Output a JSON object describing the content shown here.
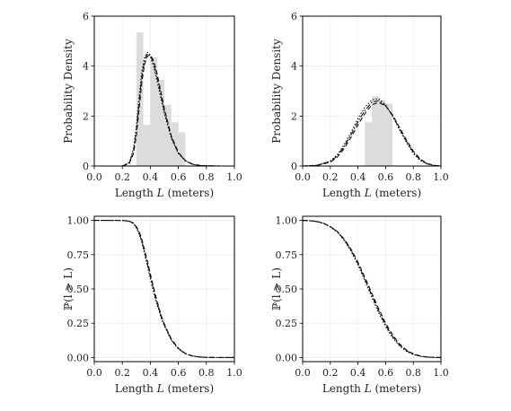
{
  "chart_data": [
    {
      "type": "histogram+line",
      "xlabel": "Length L (meters)",
      "ylabel": "Probability Density",
      "xlim": [
        0,
        1
      ],
      "ylim": [
        0,
        6
      ],
      "xticks": [
        "0.0",
        "0.2",
        "0.4",
        "0.6",
        "0.8",
        "1.0"
      ],
      "yticks": [
        "0",
        "2",
        "4",
        "6"
      ],
      "grid": true,
      "histogram": {
        "color": "#dcdcdc",
        "bins": [
          {
            "x0": 0.3,
            "x1": 0.35,
            "value": 5.35
          },
          {
            "x0": 0.35,
            "x1": 0.4,
            "value": 1.65
          },
          {
            "x0": 0.4,
            "x1": 0.45,
            "value": 4.35
          },
          {
            "x0": 0.45,
            "x1": 0.5,
            "value": 3.45
          },
          {
            "x0": 0.5,
            "x1": 0.55,
            "value": 2.45
          },
          {
            "x0": 0.55,
            "x1": 0.6,
            "value": 1.75
          },
          {
            "x0": 0.6,
            "x1": 0.65,
            "value": 1.35
          }
        ]
      },
      "series": [
        {
          "style": "dashed",
          "x": [
            0.2,
            0.25,
            0.28,
            0.3,
            0.32,
            0.34,
            0.36,
            0.38,
            0.4,
            0.42,
            0.44,
            0.46,
            0.48,
            0.5,
            0.55,
            0.6,
            0.65,
            0.7,
            0.75,
            0.8,
            0.9,
            1.0
          ],
          "y": [
            0.0,
            0.1,
            0.5,
            1.2,
            2.3,
            3.4,
            4.1,
            4.4,
            4.45,
            4.25,
            3.9,
            3.4,
            2.85,
            2.3,
            1.2,
            0.55,
            0.22,
            0.08,
            0.03,
            0.01,
            0,
            0
          ]
        },
        {
          "style": "dotted",
          "x": [
            0.2,
            0.25,
            0.28,
            0.3,
            0.32,
            0.34,
            0.36,
            0.38,
            0.4,
            0.42,
            0.44,
            0.46,
            0.48,
            0.5,
            0.55,
            0.6,
            0.65,
            0.7,
            0.75,
            0.8,
            0.9,
            1.0
          ],
          "y": [
            0.0,
            0.15,
            0.7,
            1.6,
            2.8,
            3.8,
            4.4,
            4.55,
            4.4,
            4.05,
            3.6,
            3.1,
            2.6,
            2.1,
            1.1,
            0.5,
            0.2,
            0.07,
            0.02,
            0.01,
            0,
            0
          ]
        },
        {
          "style": "dashdot",
          "x": [
            0.2,
            0.25,
            0.28,
            0.3,
            0.32,
            0.34,
            0.36,
            0.38,
            0.4,
            0.42,
            0.44,
            0.46,
            0.48,
            0.5,
            0.55,
            0.6,
            0.65,
            0.7,
            0.75,
            0.8,
            0.9,
            1.0
          ],
          "y": [
            0.0,
            0.12,
            0.6,
            1.4,
            2.55,
            3.6,
            4.25,
            4.5,
            4.45,
            4.15,
            3.75,
            3.25,
            2.7,
            2.2,
            1.15,
            0.52,
            0.21,
            0.07,
            0.02,
            0.01,
            0,
            0
          ]
        }
      ]
    },
    {
      "type": "histogram+line",
      "xlabel": "Length L (meters)",
      "ylabel": "Probability Density",
      "xlim": [
        0,
        1
      ],
      "ylim": [
        0,
        6
      ],
      "xticks": [
        "0.0",
        "0.2",
        "0.4",
        "0.6",
        "0.8",
        "1.0"
      ],
      "yticks": [
        "0",
        "2",
        "4",
        "6"
      ],
      "grid": true,
      "histogram": {
        "color": "#dcdcdc",
        "bins": [
          {
            "x0": 0.45,
            "x1": 0.5,
            "value": 1.75
          },
          {
            "x0": 0.5,
            "x1": 0.55,
            "value": 2.8
          },
          {
            "x0": 0.55,
            "x1": 0.6,
            "value": 2.65
          },
          {
            "x0": 0.6,
            "x1": 0.65,
            "value": 2.5
          }
        ]
      },
      "series": [
        {
          "style": "dashed",
          "x": [
            0.0,
            0.1,
            0.2,
            0.25,
            0.3,
            0.35,
            0.4,
            0.45,
            0.5,
            0.55,
            0.6,
            0.65,
            0.7,
            0.75,
            0.8,
            0.85,
            0.9,
            0.95,
            1.0
          ],
          "y": [
            0.0,
            0.02,
            0.15,
            0.35,
            0.7,
            1.15,
            1.65,
            2.1,
            2.45,
            2.55,
            2.4,
            2.05,
            1.55,
            1.05,
            0.6,
            0.28,
            0.1,
            0.03,
            0.0
          ]
        },
        {
          "style": "dotted",
          "x": [
            0.0,
            0.1,
            0.2,
            0.25,
            0.3,
            0.35,
            0.4,
            0.45,
            0.5,
            0.55,
            0.6,
            0.65,
            0.7,
            0.75,
            0.8,
            0.85,
            0.9,
            0.95,
            1.0
          ],
          "y": [
            0.0,
            0.03,
            0.2,
            0.45,
            0.85,
            1.35,
            1.9,
            2.35,
            2.65,
            2.7,
            2.45,
            2.0,
            1.45,
            0.95,
            0.5,
            0.22,
            0.08,
            0.02,
            0.0
          ]
        },
        {
          "style": "dashdot",
          "x": [
            0.0,
            0.1,
            0.2,
            0.25,
            0.3,
            0.35,
            0.4,
            0.45,
            0.5,
            0.55,
            0.6,
            0.65,
            0.7,
            0.75,
            0.8,
            0.85,
            0.9,
            0.95,
            1.0
          ],
          "y": [
            0.0,
            0.02,
            0.18,
            0.4,
            0.78,
            1.25,
            1.78,
            2.22,
            2.55,
            2.62,
            2.42,
            2.02,
            1.5,
            1.0,
            0.55,
            0.25,
            0.09,
            0.02,
            0.0
          ]
        }
      ]
    },
    {
      "type": "line",
      "xlabel": "Length L (meters)",
      "ylabel": "ℙ(l > L)",
      "xlim": [
        0,
        1
      ],
      "ylim": [
        -0.03,
        1.03
      ],
      "xticks": [
        "0.0",
        "0.2",
        "0.4",
        "0.6",
        "0.8",
        "1.0"
      ],
      "yticks": [
        "0.00",
        "0.25",
        "0.50",
        "0.75",
        "1.00"
      ],
      "grid": true,
      "series": [
        {
          "style": "dashed",
          "x": [
            0.0,
            0.2,
            0.25,
            0.28,
            0.3,
            0.32,
            0.34,
            0.36,
            0.38,
            0.4,
            0.42,
            0.44,
            0.46,
            0.48,
            0.5,
            0.55,
            0.6,
            0.65,
            0.7,
            0.75,
            0.8,
            0.9,
            1.0
          ],
          "y": [
            1.0,
            1.0,
            0.995,
            0.98,
            0.955,
            0.92,
            0.86,
            0.78,
            0.7,
            0.61,
            0.525,
            0.44,
            0.37,
            0.3,
            0.245,
            0.135,
            0.068,
            0.03,
            0.012,
            0.004,
            0.001,
            0,
            0
          ]
        },
        {
          "style": "dotted",
          "x": [
            0.0,
            0.2,
            0.25,
            0.28,
            0.3,
            0.32,
            0.34,
            0.36,
            0.38,
            0.4,
            0.42,
            0.44,
            0.46,
            0.48,
            0.5,
            0.55,
            0.6,
            0.65,
            0.7,
            0.75,
            0.8,
            0.9,
            1.0
          ],
          "y": [
            1.0,
            1.0,
            0.993,
            0.975,
            0.945,
            0.9,
            0.835,
            0.75,
            0.665,
            0.575,
            0.49,
            0.41,
            0.345,
            0.28,
            0.23,
            0.125,
            0.062,
            0.027,
            0.011,
            0.004,
            0.001,
            0,
            0
          ]
        },
        {
          "style": "dashdot",
          "x": [
            0.0,
            0.2,
            0.25,
            0.28,
            0.3,
            0.32,
            0.34,
            0.36,
            0.38,
            0.4,
            0.42,
            0.44,
            0.46,
            0.48,
            0.5,
            0.55,
            0.6,
            0.65,
            0.7,
            0.75,
            0.8,
            0.9,
            1.0
          ],
          "y": [
            1.0,
            1.0,
            0.994,
            0.978,
            0.95,
            0.91,
            0.848,
            0.765,
            0.682,
            0.592,
            0.507,
            0.425,
            0.357,
            0.29,
            0.237,
            0.13,
            0.065,
            0.028,
            0.011,
            0.004,
            0.001,
            0,
            0
          ]
        }
      ]
    },
    {
      "type": "line",
      "xlabel": "Length L (meters)",
      "ylabel": "ℙ(l > L)",
      "xlim": [
        0,
        1
      ],
      "ylim": [
        -0.03,
        1.03
      ],
      "xticks": [
        "0.0",
        "0.2",
        "0.4",
        "0.6",
        "0.8",
        "1.0"
      ],
      "yticks": [
        "0.00",
        "0.25",
        "0.50",
        "0.75",
        "1.00"
      ],
      "grid": true,
      "series": [
        {
          "style": "dashed",
          "x": [
            0.0,
            0.05,
            0.1,
            0.15,
            0.2,
            0.25,
            0.3,
            0.35,
            0.4,
            0.45,
            0.5,
            0.55,
            0.6,
            0.65,
            0.7,
            0.75,
            0.8,
            0.85,
            0.9,
            0.95,
            1.0
          ],
          "y": [
            1.0,
            0.998,
            0.993,
            0.98,
            0.955,
            0.92,
            0.865,
            0.79,
            0.695,
            0.585,
            0.47,
            0.355,
            0.25,
            0.165,
            0.1,
            0.055,
            0.027,
            0.012,
            0.004,
            0.001,
            0.0
          ]
        },
        {
          "style": "dotted",
          "x": [
            0.0,
            0.05,
            0.1,
            0.15,
            0.2,
            0.25,
            0.3,
            0.35,
            0.4,
            0.45,
            0.5,
            0.55,
            0.6,
            0.65,
            0.7,
            0.75,
            0.8,
            0.85,
            0.9,
            0.95,
            1.0
          ],
          "y": [
            1.0,
            0.998,
            0.992,
            0.978,
            0.952,
            0.915,
            0.855,
            0.775,
            0.675,
            0.56,
            0.44,
            0.325,
            0.225,
            0.145,
            0.085,
            0.045,
            0.022,
            0.009,
            0.003,
            0.001,
            0.0
          ]
        },
        {
          "style": "dashdot",
          "x": [
            0.0,
            0.05,
            0.1,
            0.15,
            0.2,
            0.25,
            0.3,
            0.35,
            0.4,
            0.45,
            0.5,
            0.55,
            0.6,
            0.65,
            0.7,
            0.75,
            0.8,
            0.85,
            0.9,
            0.95,
            1.0
          ],
          "y": [
            1.0,
            0.998,
            0.992,
            0.979,
            0.954,
            0.918,
            0.86,
            0.782,
            0.685,
            0.572,
            0.455,
            0.34,
            0.237,
            0.155,
            0.092,
            0.05,
            0.024,
            0.01,
            0.004,
            0.001,
            0.0
          ]
        }
      ]
    }
  ]
}
